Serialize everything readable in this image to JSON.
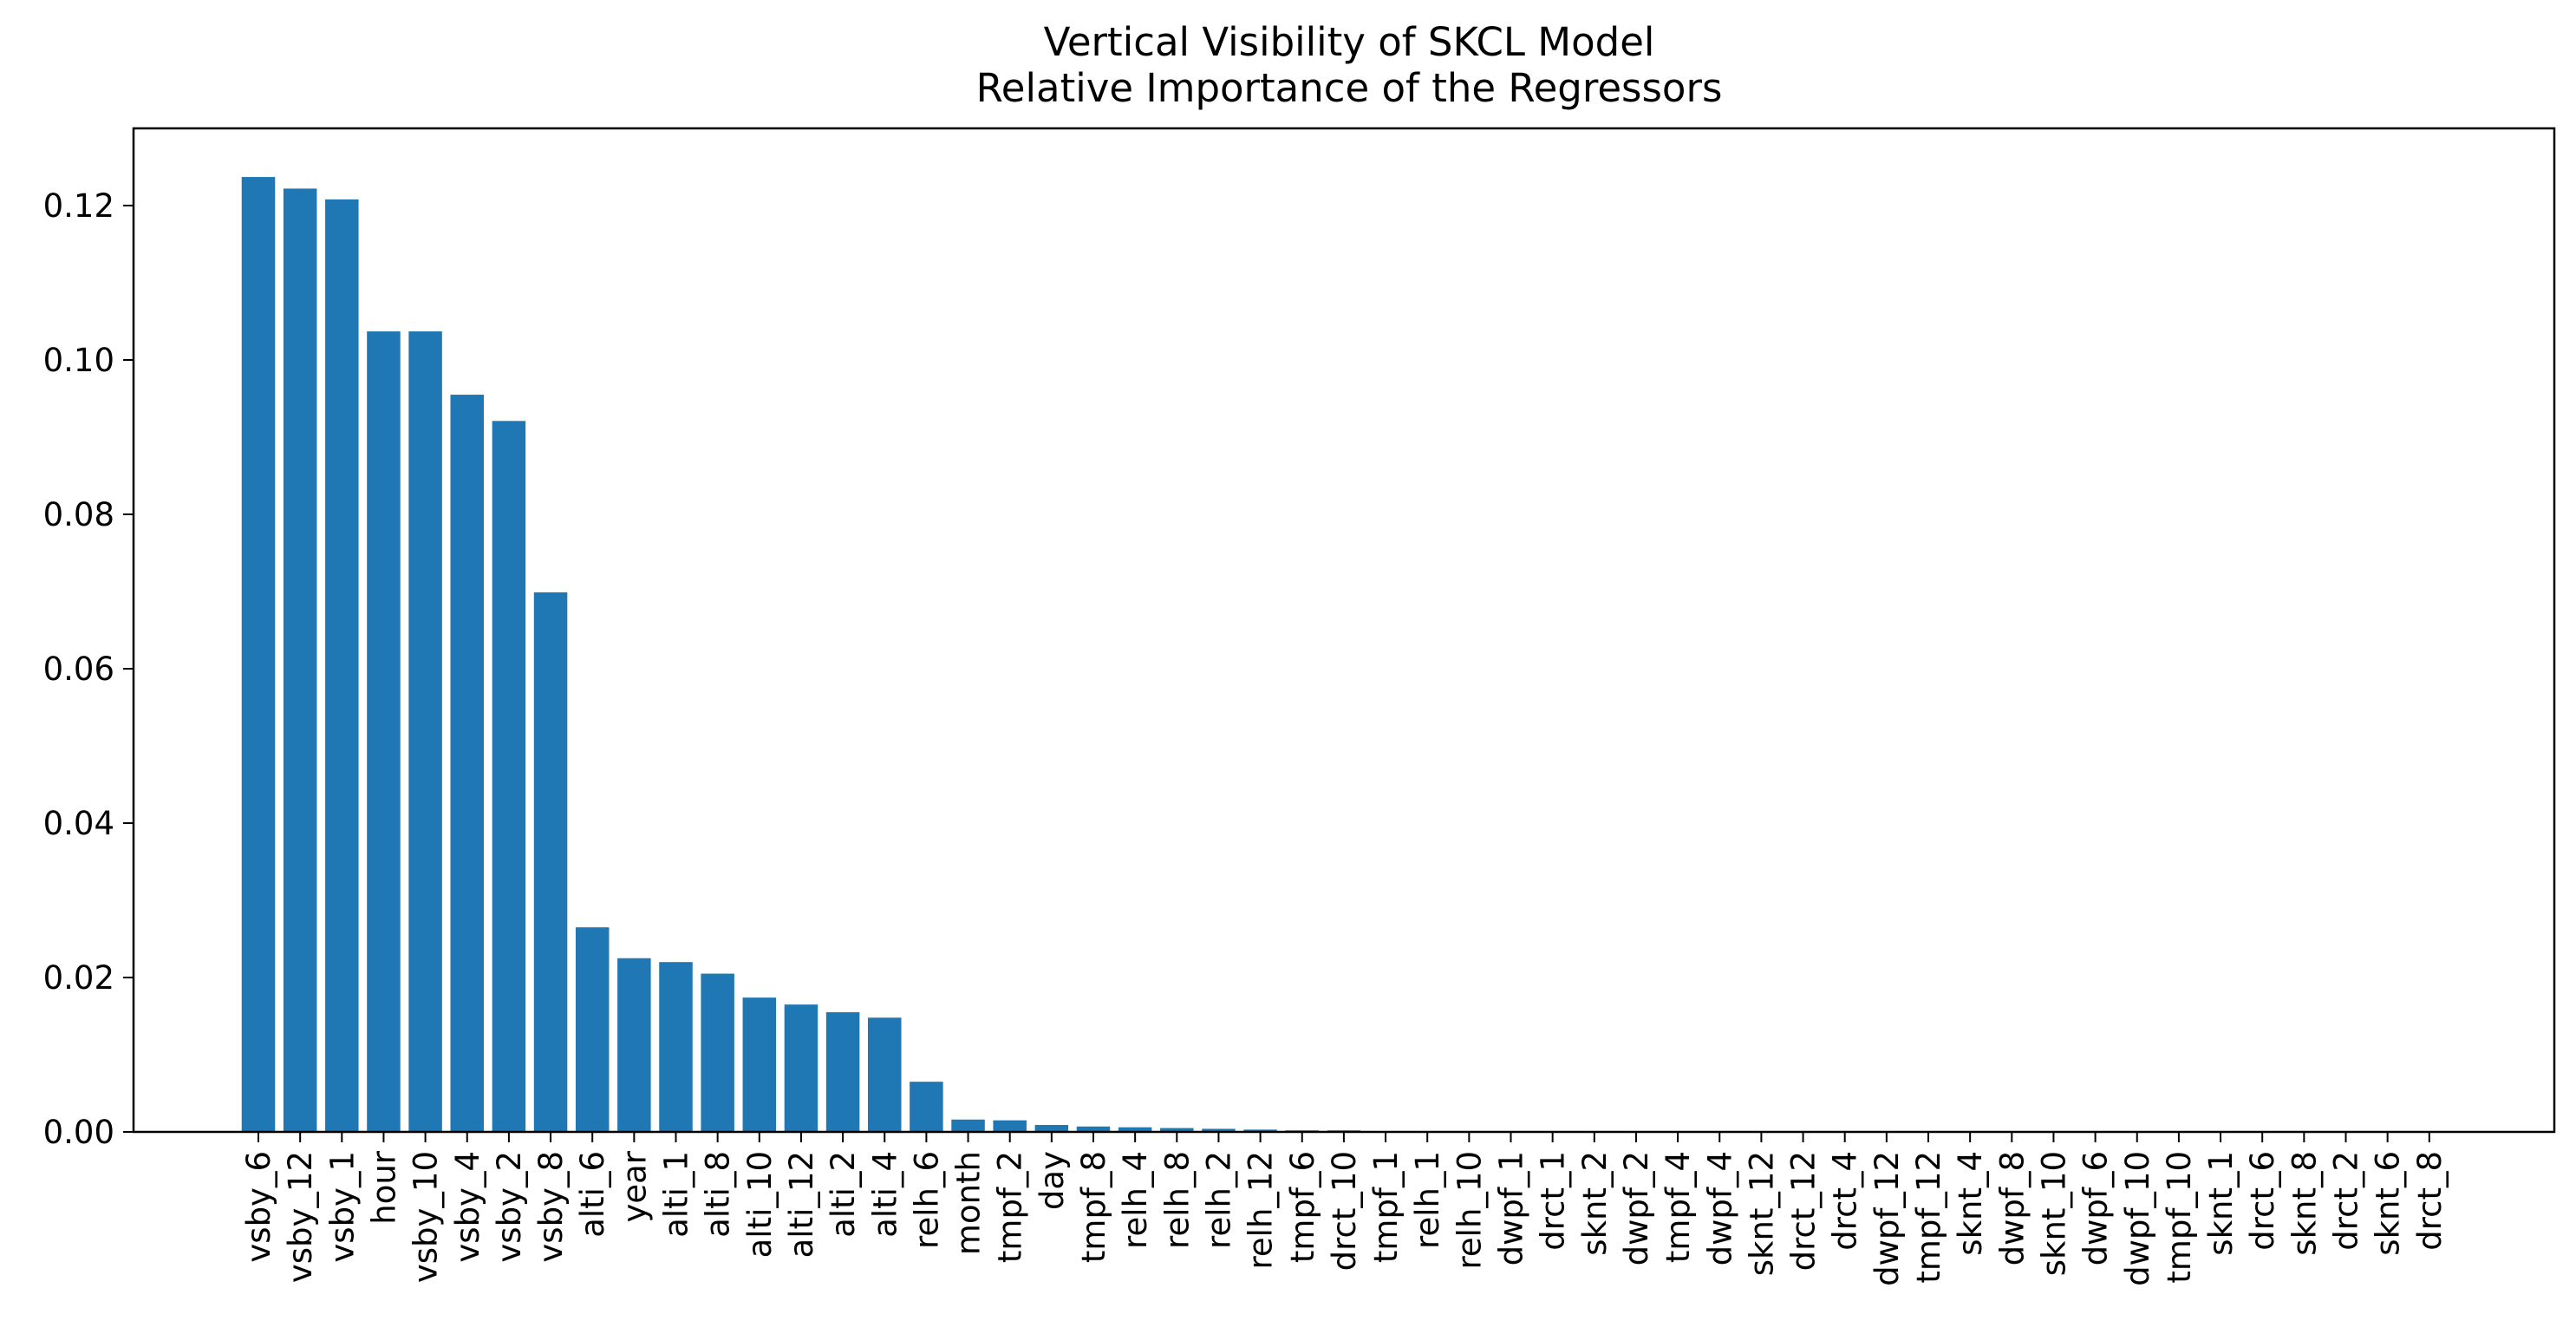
{
  "chart_data": {
    "type": "bar",
    "title_lines": [
      "Vertical Visibility of SKCL Model",
      "Relative Importance of the Regressors"
    ],
    "xlabel": "",
    "ylabel": "",
    "ylim": [
      0,
      0.13
    ],
    "y_ticks": [
      "0.00",
      "0.02",
      "0.04",
      "0.06",
      "0.08",
      "0.10",
      "0.12"
    ],
    "y_tick_values": [
      0,
      0.02,
      0.04,
      0.06,
      0.08,
      0.1,
      0.12
    ],
    "bar_color": "#1f77b4",
    "grid": false,
    "categories": [
      "vsby_6",
      "vsby_12",
      "vsby_1",
      "hour",
      "vsby_10",
      "vsby_4",
      "vsby_2",
      "vsby_8",
      "alti_6",
      "year",
      "alti_1",
      "alti_8",
      "alti_10",
      "alti_12",
      "alti_2",
      "alti_4",
      "relh_6",
      "month",
      "tmpf_2",
      "day",
      "tmpf_8",
      "relh_4",
      "relh_8",
      "relh_2",
      "relh_12",
      "tmpf_6",
      "drct_10",
      "tmpf_1",
      "relh_1",
      "relh_10",
      "dwpf_1",
      "drct_1",
      "sknt_2",
      "dwpf_2",
      "tmpf_4",
      "dwpf_4",
      "sknt_12",
      "drct_12",
      "drct_4",
      "dwpf_12",
      "tmpf_12",
      "sknt_4",
      "dwpf_8",
      "sknt_10",
      "dwpf_6",
      "dwpf_10",
      "tmpf_10",
      "sknt_1",
      "drct_6",
      "sknt_8",
      "drct_2",
      "sknt_6",
      "drct_8"
    ],
    "values": [
      0.1237,
      0.1222,
      0.1208,
      0.1037,
      0.1037,
      0.0955,
      0.0921,
      0.0699,
      0.0265,
      0.0225,
      0.022,
      0.0205,
      0.0174,
      0.0165,
      0.0155,
      0.0148,
      0.0065,
      0.0016,
      0.0015,
      0.0009,
      0.0007,
      0.0006,
      0.0005,
      0.0004,
      0.0003,
      0.0002,
      0.0002,
      0.0001,
      0.0001,
      0.0001,
      0.0001,
      0.0,
      0.0,
      0.0,
      0.0,
      0.0,
      0.0,
      0.0,
      0.0,
      0.0,
      0.0,
      0.0,
      0.0,
      0.0,
      0.0,
      0.0,
      0.0,
      0.0,
      0.0,
      0.0,
      0.0,
      0.0,
      0.0
    ]
  }
}
